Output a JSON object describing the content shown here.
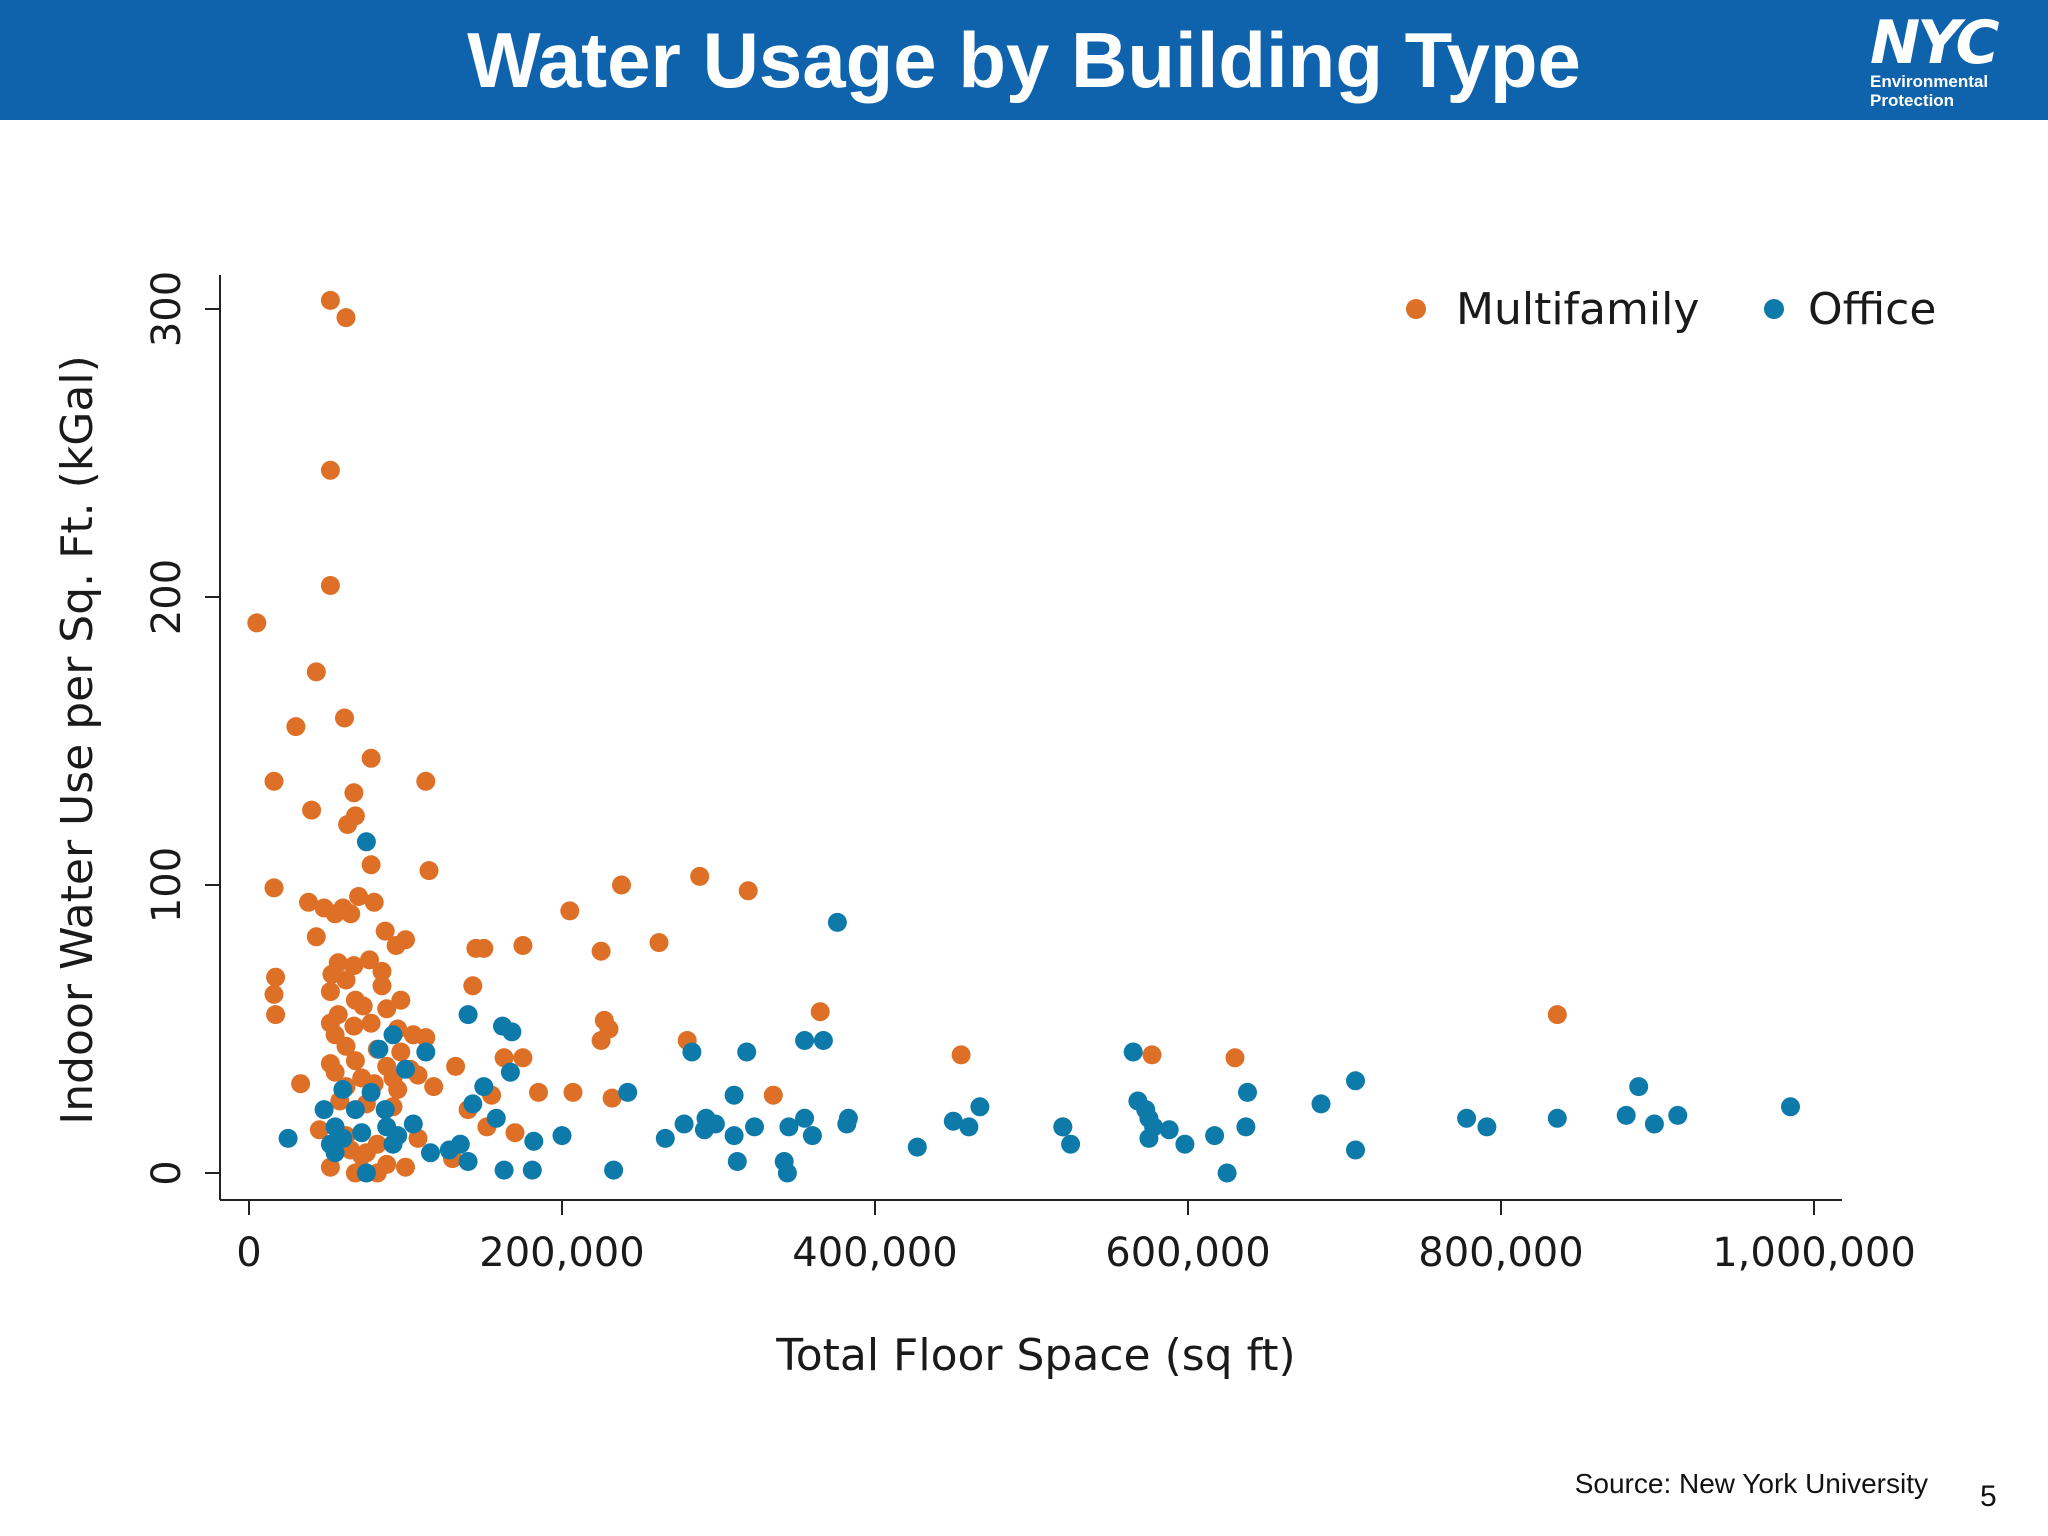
{
  "header": {
    "title": "Water Usage by Building Type"
  },
  "logo": {
    "mark": "NYC",
    "line1": "Environmental",
    "line2": "Protection"
  },
  "footer": {
    "source": "Source: New York University",
    "page_number": "5"
  },
  "colors": {
    "header_bg": "#0f63ad",
    "multifamily": "#dd7026",
    "office": "#0d7aaa"
  },
  "chart_data": {
    "type": "scatter",
    "title": "",
    "xlabel": "Total Floor Space (sq ft)",
    "ylabel": "Indoor Water Use per Sq. Ft. (kGal)",
    "xlim": [
      0,
      1000000
    ],
    "ylim": [
      0,
      300
    ],
    "xticks": [
      0,
      200000,
      400000,
      600000,
      800000,
      1000000
    ],
    "xtick_labels": [
      "0",
      "200,000",
      "400,000",
      "600,000",
      "800,000",
      "1,000,000"
    ],
    "yticks": [
      0,
      100,
      200,
      300
    ],
    "ytick_labels": [
      "0",
      "100",
      "200",
      "300"
    ],
    "legend_position": "top-right",
    "series": [
      {
        "name": "Multifamily",
        "color": "#dd7026",
        "points": [
          [
            52000,
            303
          ],
          [
            62000,
            297
          ],
          [
            52000,
            244
          ],
          [
            52000,
            204
          ],
          [
            5000,
            191
          ],
          [
            43000,
            174
          ],
          [
            61000,
            158
          ],
          [
            30000,
            155
          ],
          [
            78000,
            144
          ],
          [
            16000,
            136
          ],
          [
            113000,
            136
          ],
          [
            67000,
            132
          ],
          [
            40000,
            126
          ],
          [
            68000,
            124
          ],
          [
            63000,
            121
          ],
          [
            78000,
            107
          ],
          [
            115000,
            105
          ],
          [
            16000,
            99
          ],
          [
            288000,
            103
          ],
          [
            238000,
            100
          ],
          [
            319000,
            98
          ],
          [
            38000,
            94
          ],
          [
            48000,
            92
          ],
          [
            55000,
            90
          ],
          [
            60000,
            92
          ],
          [
            70000,
            96
          ],
          [
            80000,
            94
          ],
          [
            65000,
            90
          ],
          [
            205000,
            91
          ],
          [
            87000,
            84
          ],
          [
            43000,
            82
          ],
          [
            100000,
            81
          ],
          [
            94000,
            79
          ],
          [
            175000,
            79
          ],
          [
            262000,
            80
          ],
          [
            145000,
            78
          ],
          [
            150000,
            78
          ],
          [
            225000,
            77
          ],
          [
            57000,
            73
          ],
          [
            67000,
            72
          ],
          [
            77000,
            74
          ],
          [
            85000,
            70
          ],
          [
            53000,
            69
          ],
          [
            62000,
            67
          ],
          [
            85000,
            65
          ],
          [
            17000,
            68
          ],
          [
            16000,
            62
          ],
          [
            143000,
            65
          ],
          [
            52000,
            63
          ],
          [
            97000,
            60
          ],
          [
            68000,
            60
          ],
          [
            73000,
            58
          ],
          [
            88000,
            57
          ],
          [
            57000,
            55
          ],
          [
            17000,
            55
          ],
          [
            365000,
            56
          ],
          [
            836000,
            55
          ],
          [
            52000,
            52
          ],
          [
            67000,
            51
          ],
          [
            78000,
            52
          ],
          [
            95000,
            50
          ],
          [
            105000,
            48
          ],
          [
            230000,
            50
          ],
          [
            55000,
            48
          ],
          [
            113000,
            47
          ],
          [
            227000,
            53
          ],
          [
            280000,
            46
          ],
          [
            225000,
            46
          ],
          [
            62000,
            44
          ],
          [
            82000,
            43
          ],
          [
            97000,
            42
          ],
          [
            163000,
            40
          ],
          [
            175000,
            40
          ],
          [
            455000,
            41
          ],
          [
            577000,
            41
          ],
          [
            630000,
            40
          ],
          [
            52000,
            38
          ],
          [
            68000,
            39
          ],
          [
            88000,
            37
          ],
          [
            103000,
            36
          ],
          [
            132000,
            37
          ],
          [
            55000,
            35
          ],
          [
            72000,
            33
          ],
          [
            92000,
            33
          ],
          [
            108000,
            34
          ],
          [
            33000,
            31
          ],
          [
            62000,
            30
          ],
          [
            80000,
            31
          ],
          [
            95000,
            29
          ],
          [
            118000,
            30
          ],
          [
            185000,
            28
          ],
          [
            207000,
            28
          ],
          [
            232000,
            26
          ],
          [
            335000,
            27
          ],
          [
            155000,
            27
          ],
          [
            58000,
            25
          ],
          [
            75000,
            24
          ],
          [
            92000,
            23
          ],
          [
            140000,
            22
          ],
          [
            152000,
            16
          ],
          [
            170000,
            14
          ],
          [
            520000,
            16
          ],
          [
            45000,
            15
          ],
          [
            62000,
            13
          ],
          [
            108000,
            12
          ],
          [
            82000,
            10
          ],
          [
            65000,
            8
          ],
          [
            75000,
            7
          ],
          [
            72000,
            6
          ],
          [
            130000,
            5
          ],
          [
            52000,
            2
          ],
          [
            72000,
            1
          ],
          [
            88000,
            3
          ],
          [
            100000,
            2
          ],
          [
            68000,
            0
          ],
          [
            82000,
            0
          ]
        ]
      },
      {
        "name": "Office",
        "color": "#0d7aaa",
        "points": [
          [
            75000,
            115
          ],
          [
            376000,
            87
          ],
          [
            140000,
            55
          ],
          [
            162000,
            51
          ],
          [
            168000,
            49
          ],
          [
            92000,
            48
          ],
          [
            355000,
            46
          ],
          [
            367000,
            46
          ],
          [
            113000,
            42
          ],
          [
            283000,
            42
          ],
          [
            318000,
            42
          ],
          [
            565000,
            42
          ],
          [
            83000,
            43
          ],
          [
            100000,
            36
          ],
          [
            167000,
            35
          ],
          [
            150000,
            30
          ],
          [
            60000,
            29
          ],
          [
            78000,
            28
          ],
          [
            242000,
            28
          ],
          [
            310000,
            27
          ],
          [
            638000,
            28
          ],
          [
            707000,
            32
          ],
          [
            888000,
            30
          ],
          [
            568000,
            25
          ],
          [
            685000,
            24
          ],
          [
            985000,
            23
          ],
          [
            573000,
            22
          ],
          [
            68000,
            22
          ],
          [
            48000,
            22
          ],
          [
            87000,
            22
          ],
          [
            143000,
            24
          ],
          [
            467000,
            23
          ],
          [
            158000,
            19
          ],
          [
            278000,
            17
          ],
          [
            292000,
            19
          ],
          [
            383000,
            19
          ],
          [
            355000,
            19
          ],
          [
            450000,
            18
          ],
          [
            520000,
            16
          ],
          [
            575000,
            19
          ],
          [
            578000,
            16
          ],
          [
            588000,
            15
          ],
          [
            637000,
            16
          ],
          [
            778000,
            19
          ],
          [
            791000,
            16
          ],
          [
            836000,
            19
          ],
          [
            880000,
            20
          ],
          [
            898000,
            17
          ],
          [
            913000,
            20
          ],
          [
            298000,
            17
          ],
          [
            323000,
            16
          ],
          [
            345000,
            16
          ],
          [
            266000,
            12
          ],
          [
            55000,
            16
          ],
          [
            60000,
            12
          ],
          [
            105000,
            17
          ],
          [
            95000,
            13
          ],
          [
            200000,
            13
          ],
          [
            360000,
            13
          ],
          [
            382000,
            17
          ],
          [
            460000,
            16
          ],
          [
            575000,
            12
          ],
          [
            617000,
            13
          ],
          [
            25000,
            12
          ],
          [
            72000,
            14
          ],
          [
            92000,
            10
          ],
          [
            135000,
            10
          ],
          [
            128000,
            8
          ],
          [
            116000,
            7
          ],
          [
            182000,
            11
          ],
          [
            291000,
            15
          ],
          [
            310000,
            13
          ],
          [
            52000,
            10
          ],
          [
            55000,
            7
          ],
          [
            427000,
            9
          ],
          [
            525000,
            10
          ],
          [
            598000,
            10
          ],
          [
            707000,
            8
          ],
          [
            140000,
            4
          ],
          [
            342000,
            4
          ],
          [
            312000,
            4
          ],
          [
            163000,
            1
          ],
          [
            181000,
            1
          ],
          [
            233000,
            1
          ],
          [
            344000,
            0
          ],
          [
            625000,
            0
          ],
          [
            75000,
            0
          ],
          [
            88000,
            16
          ]
        ]
      }
    ]
  }
}
